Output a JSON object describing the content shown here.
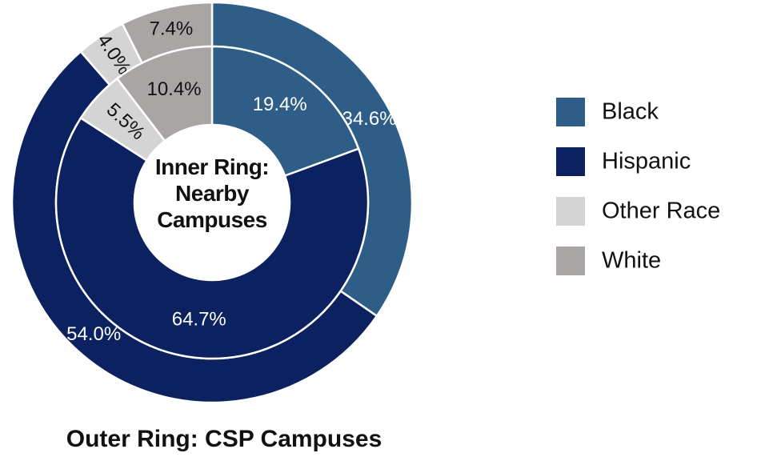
{
  "chart_data": {
    "type": "donut",
    "categories": [
      "Black",
      "Hispanic",
      "Other Race",
      "White"
    ],
    "colors": [
      "#2e5d87",
      "#0c2160",
      "#d4d4d4",
      "#a8a5a4"
    ],
    "series": [
      {
        "name": "Outer Ring: CSP Campuses",
        "values": [
          34.6,
          54.0,
          4.0,
          7.4
        ],
        "value_labels": [
          "34.6%",
          "54.0%",
          "4.0%",
          "7.4%"
        ]
      },
      {
        "name": "Inner Ring: Nearby Campuses",
        "values": [
          19.4,
          64.7,
          5.5,
          10.4
        ],
        "value_labels": [
          "19.4%",
          "64.7%",
          "5.5%",
          "10.4%"
        ]
      }
    ],
    "legend": "right"
  }
}
